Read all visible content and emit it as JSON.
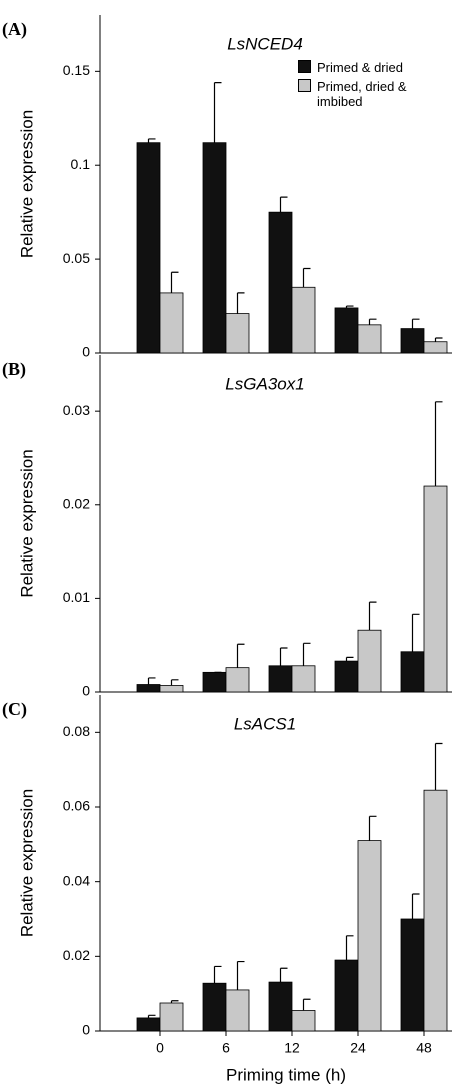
{
  "chart_data": [
    {
      "type": "bar",
      "panel_label": "(A)",
      "title": "LsNCED4",
      "ylabel": "Relative expression",
      "ylim": [
        0,
        0.18
      ],
      "yticks": [
        0,
        0.05,
        0.1,
        0.15
      ],
      "series": [
        {
          "name": "Primed & dried",
          "color": "#111111",
          "values": [
            0.112,
            0.112,
            0.075,
            0.024,
            0.013
          ],
          "errors": [
            0.002,
            0.032,
            0.008,
            0.001,
            0.005
          ]
        },
        {
          "name": "Primed, dried & imbibed",
          "color": "#c8c8c8",
          "values": [
            0.032,
            0.021,
            0.035,
            0.015,
            0.006
          ],
          "errors": [
            0.011,
            0.011,
            0.01,
            0.003,
            0.002
          ]
        }
      ]
    },
    {
      "type": "bar",
      "panel_label": "(B)",
      "title": "LsGA3ox1",
      "ylabel": "Relative expression",
      "ylim": [
        0,
        0.036
      ],
      "yticks": [
        0,
        0.01,
        0.02,
        0.03
      ],
      "series": [
        {
          "color": "#111111",
          "values": [
            0.0008,
            0.0021,
            0.0028,
            0.0033,
            0.0043
          ],
          "errors": [
            0.0007,
            0,
            0.0019,
            0.0004,
            0.004
          ]
        },
        {
          "color": "#c8c8c8",
          "values": [
            0.0007,
            0.0026,
            0.0028,
            0.0066,
            0.022
          ],
          "errors": [
            0.0006,
            0.0025,
            0.0024,
            0.003,
            0.009
          ]
        }
      ]
    },
    {
      "type": "bar",
      "panel_label": "(C)",
      "title": "LsACS1",
      "ylabel": "Relative expression",
      "xlabel": "Priming time (h)",
      "categories": [
        "0",
        "6",
        "12",
        "24",
        "48"
      ],
      "ylim": [
        0,
        0.09
      ],
      "yticks": [
        0,
        0.02,
        0.04,
        0.06,
        0.08
      ],
      "series": [
        {
          "color": "#111111",
          "values": [
            0.0035,
            0.0128,
            0.0131,
            0.019,
            0.03
          ],
          "errors": [
            0.0007,
            0.0045,
            0.0037,
            0.0065,
            0.0067
          ]
        },
        {
          "color": "#c8c8c8",
          "values": [
            0.0075,
            0.011,
            0.0055,
            0.051,
            0.0645
          ],
          "errors": [
            0.0006,
            0.0076,
            0.003,
            0.0065,
            0.0125
          ]
        }
      ]
    }
  ]
}
